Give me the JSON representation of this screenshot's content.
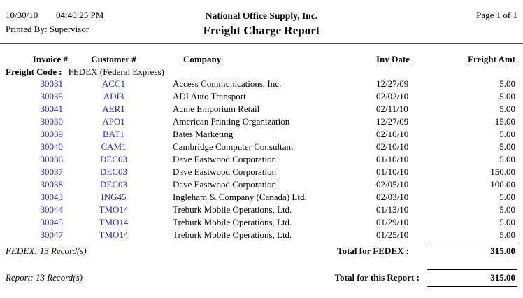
{
  "page": {
    "date": "10/30/10",
    "time": "04:40:25 PM",
    "printed_by": "Printed By: Supervisor",
    "company": "National Office Supply, Inc.",
    "title": "Freight Charge Report",
    "page_label": "Page 1 of 1"
  },
  "colors": {
    "link_blue": "#2222CC",
    "text": "#000000",
    "rule": "#4a4a4a"
  },
  "table": {
    "headers": {
      "invoice": "Invoice #",
      "customer": "Customer #",
      "company": "Company",
      "inv_date": "Inv Date",
      "amount": "Freight Amt"
    },
    "group": {
      "label": "Freight Code :",
      "value": "FEDEX (Federal Express)"
    },
    "rows": [
      {
        "invoice": "30031",
        "customer": "ACC1",
        "company": "Access Communications, Inc.",
        "inv_date": "12/27/09",
        "amount": "5.00"
      },
      {
        "invoice": "30035",
        "customer": "ADI3",
        "company": "ADI Auto Transport",
        "inv_date": "02/02/10",
        "amount": "5.00"
      },
      {
        "invoice": "30041",
        "customer": "AER1",
        "company": "Acme Emporium Retail",
        "inv_date": "02/11/10",
        "amount": "5.00"
      },
      {
        "invoice": "30030",
        "customer": "APO1",
        "company": "American Printing Organization",
        "inv_date": "12/27/09",
        "amount": "15.00"
      },
      {
        "invoice": "30039",
        "customer": "BAT1",
        "company": "Bates Marketing",
        "inv_date": "02/10/10",
        "amount": "5.00"
      },
      {
        "invoice": "30040",
        "customer": "CAM1",
        "company": "Cambridge Computer Consultant",
        "inv_date": "02/10/10",
        "amount": "5.00"
      },
      {
        "invoice": "30036",
        "customer": "DEC03",
        "company": "Dave Eastwood Corporation",
        "inv_date": "01/10/10",
        "amount": "5.00"
      },
      {
        "invoice": "30037",
        "customer": "DEC03",
        "company": "Dave Eastwood Corporation",
        "inv_date": "01/10/10",
        "amount": "150.00"
      },
      {
        "invoice": "30038",
        "customer": "DEC03",
        "company": "Dave Eastwood Corporation",
        "inv_date": "02/05/10",
        "amount": "100.00"
      },
      {
        "invoice": "30043",
        "customer": "ING45",
        "company": "Ingleham & Company (Canada) Ltd.",
        "inv_date": "02/03/10",
        "amount": "5.00"
      },
      {
        "invoice": "30044",
        "customer": "TMO14",
        "company": "Treburk Mobile Operations, Ltd.",
        "inv_date": "01/13/10",
        "amount": "5.00"
      },
      {
        "invoice": "30045",
        "customer": "TMO14",
        "company": "Treburk Mobile Operations, Ltd.",
        "inv_date": "01/29/10",
        "amount": "5.00"
      },
      {
        "invoice": "30047",
        "customer": "TMO14",
        "company": "Treburk Mobile Operations, Ltd.",
        "inv_date": "01/25/10",
        "amount": "5.00"
      }
    ],
    "group_footer": {
      "left": "FEDEX: 13 Record(s)",
      "label": "Total for FEDEX :",
      "amount": "315.00"
    },
    "report_footer": {
      "left": "Report: 13 Record(s)",
      "label": "Total for this Report :",
      "amount": "315.00"
    }
  }
}
